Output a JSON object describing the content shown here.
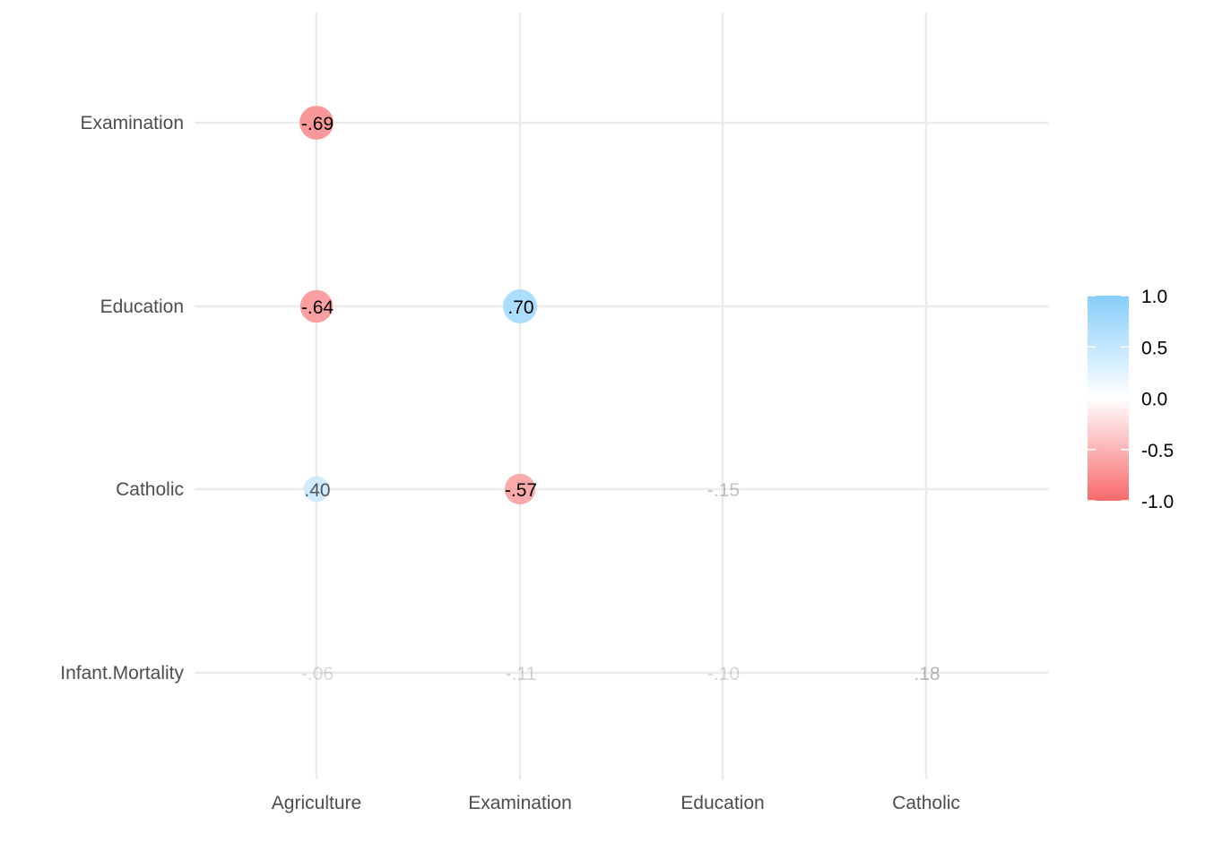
{
  "chart_data": {
    "type": "heatmap",
    "subtype": "correlation-matrix-circles",
    "x_categories": [
      "Agriculture",
      "Examination",
      "Education",
      "Catholic"
    ],
    "y_categories": [
      "Examination",
      "Education",
      "Catholic",
      "Infant.Mortality"
    ],
    "cells": [
      {
        "x": "Agriculture",
        "y": "Examination",
        "value": -0.69,
        "label": "-.69"
      },
      {
        "x": "Agriculture",
        "y": "Education",
        "value": -0.64,
        "label": "-.64"
      },
      {
        "x": "Examination",
        "y": "Education",
        "value": 0.7,
        "label": ".70"
      },
      {
        "x": "Agriculture",
        "y": "Catholic",
        "value": 0.4,
        "label": ".40"
      },
      {
        "x": "Examination",
        "y": "Catholic",
        "value": -0.57,
        "label": "-.57"
      },
      {
        "x": "Education",
        "y": "Catholic",
        "value": -0.15,
        "label": "-.15"
      },
      {
        "x": "Agriculture",
        "y": "Infant.Mortality",
        "value": -0.06,
        "label": "-.06"
      },
      {
        "x": "Examination",
        "y": "Infant.Mortality",
        "value": -0.11,
        "label": "-.11"
      },
      {
        "x": "Education",
        "y": "Infant.Mortality",
        "value": -0.1,
        "label": "-.10"
      },
      {
        "x": "Catholic",
        "y": "Infant.Mortality",
        "value": 0.18,
        "label": ".18"
      }
    ],
    "legend": {
      "placement": "right",
      "range": [
        -1.0,
        1.0
      ],
      "ticks": [
        {
          "value": 1.0,
          "label": "1.0"
        },
        {
          "value": 0.5,
          "label": "0.5"
        },
        {
          "value": 0.0,
          "label": "0.0"
        },
        {
          "value": -0.5,
          "label": "-0.5"
        },
        {
          "value": -1.0,
          "label": "-1.0"
        }
      ],
      "colors": {
        "low": "#F8696B",
        "mid": "#FFFFFF",
        "high": "#87CEFA"
      }
    },
    "grid": true
  }
}
